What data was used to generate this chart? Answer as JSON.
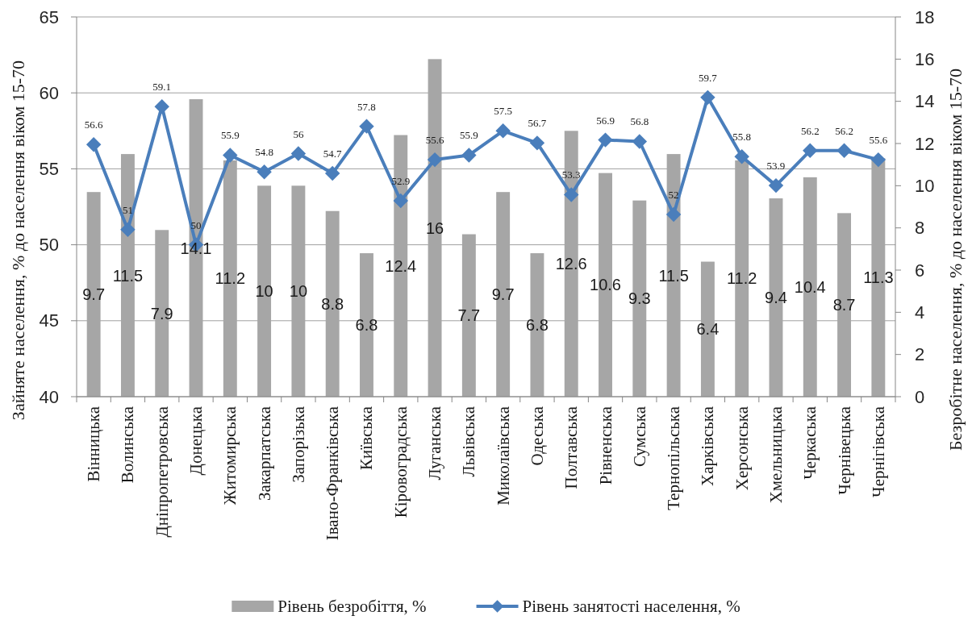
{
  "chart_data": {
    "type": "bar",
    "categories": [
      "Вінницька",
      "Волинська",
      "Дніпропетровська",
      "Донецька",
      "Житомирська",
      "Закарпатська",
      "Запорізька",
      "Івано-Франківська",
      "Київська",
      "Кіровоградська",
      "Луганська",
      "Львівська",
      "Миколаївська",
      "Одеська",
      "Полтавська",
      "Рівненська",
      "Сумська",
      "Тернопільська",
      "Харківська",
      "Херсонська",
      "Хмельницька",
      "Черкаська",
      "Чернівецька",
      "Чернігівська"
    ],
    "series": [
      {
        "name": "Рівень безробіття, %",
        "axis": "y2",
        "color": "#a6a6a6",
        "values": [
          9.7,
          11.5,
          7.9,
          14.1,
          11.2,
          10,
          10,
          8.8,
          6.8,
          12.4,
          16,
          7.7,
          9.7,
          6.8,
          12.6,
          10.6,
          9.3,
          11.5,
          6.4,
          11.2,
          9.4,
          10.4,
          8.7,
          11.3
        ]
      },
      {
        "name": "Рівень занятості населення, %",
        "type": "line",
        "color": "#4a7ebb",
        "values": [
          56.6,
          51,
          59.1,
          50,
          55.9,
          54.8,
          56,
          54.7,
          57.8,
          52.9,
          55.6,
          55.9,
          57.5,
          56.7,
          53.3,
          56.9,
          56.8,
          52,
          59.7,
          55.8,
          53.9,
          56.2,
          56.2,
          55.6
        ]
      }
    ],
    "ylabel": "Зайняте населення, % до населення віком 15-70",
    "y2label": "Безробітне населення, % до населення віком 15-70",
    "ylim": [
      40,
      65
    ],
    "yticks": [
      40,
      45,
      50,
      55,
      60,
      65
    ],
    "y2lim": [
      0,
      18
    ],
    "y2ticks": [
      0,
      2,
      4,
      6,
      8,
      10,
      12,
      14,
      16,
      18
    ],
    "grid": "y",
    "legend": "bottom",
    "data_labels": true,
    "marker": "diamond",
    "line_style": "solid"
  }
}
